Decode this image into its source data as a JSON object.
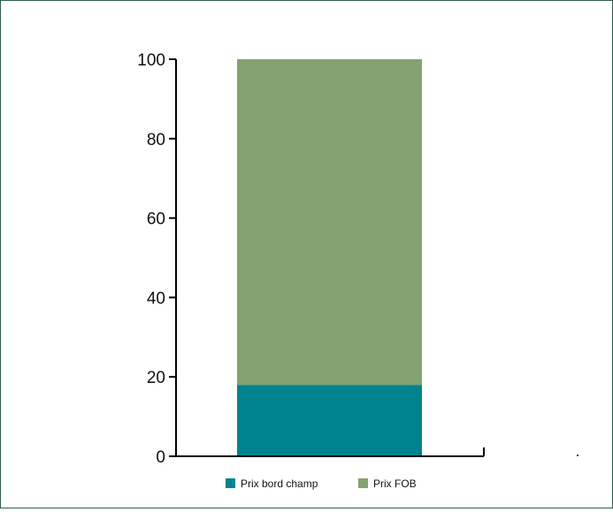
{
  "chart_data": {
    "type": "bar",
    "stacked": true,
    "categories": [
      ""
    ],
    "series": [
      {
        "name": "Prix bord champ",
        "values": [
          18
        ],
        "color": "#00838f"
      },
      {
        "name": "Prix FOB",
        "values": [
          82
        ],
        "color": "#82a36f"
      }
    ],
    "ylim": [
      0,
      100
    ],
    "yticks": [
      "0",
      "20",
      "40",
      "60",
      "80",
      "100"
    ],
    "grid": false,
    "legend_position": "bottom"
  }
}
